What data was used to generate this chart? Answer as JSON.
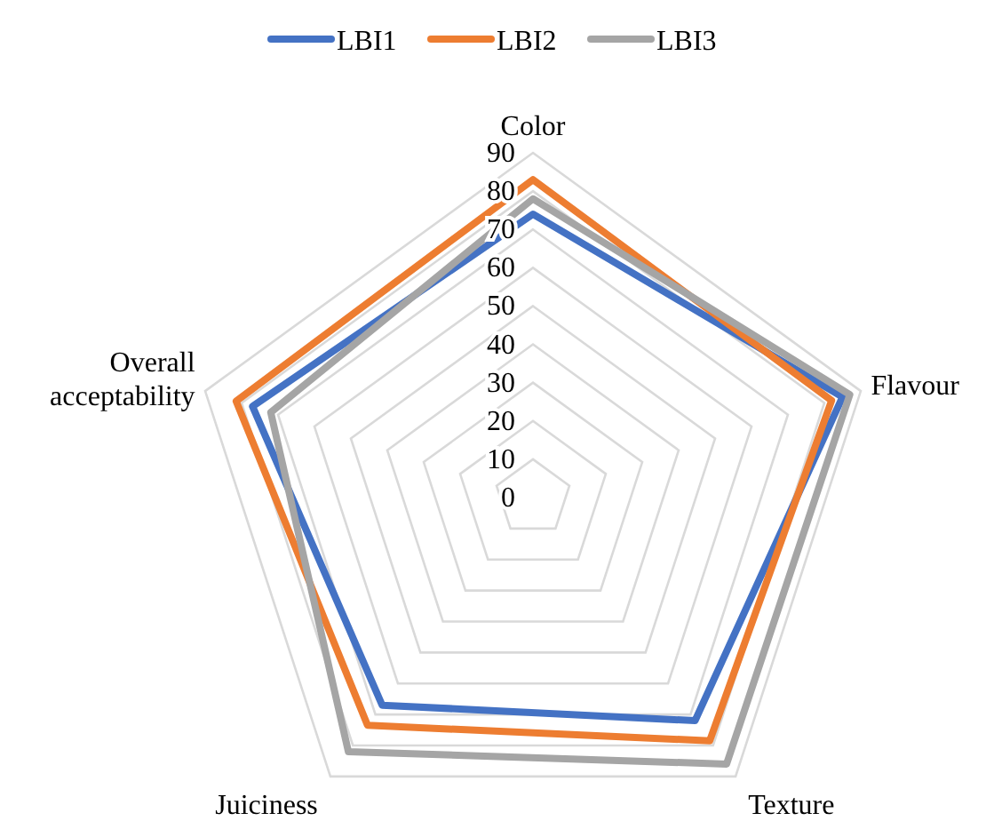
{
  "chart_data": {
    "type": "radar",
    "categories": [
      "Color",
      "Flavour",
      "Texture",
      "Juiciness",
      "Overall acceptability"
    ],
    "series": [
      {
        "name": "LBI1",
        "color": "#4472c4",
        "values": [
          74,
          85,
          72,
          67,
          77
        ]
      },
      {
        "name": "LBI2",
        "color": "#ed7d31",
        "values": [
          83,
          82,
          78.5,
          73.5,
          81.5
        ]
      },
      {
        "name": "LBI3",
        "color": "#a5a5a5",
        "values": [
          78,
          87,
          86,
          82,
          72
        ]
      }
    ],
    "ylim": [
      0,
      90
    ],
    "yticks": [
      0,
      10,
      20,
      30,
      40,
      50,
      60,
      70,
      80,
      90
    ],
    "grid": true,
    "legend": "top"
  }
}
